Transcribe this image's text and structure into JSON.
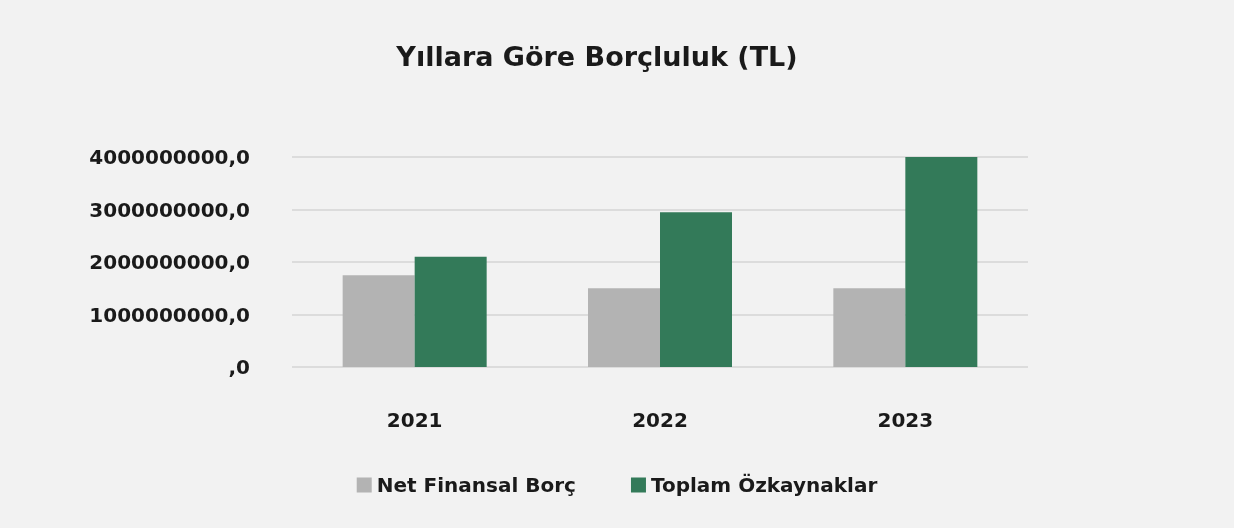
{
  "chart_data": {
    "type": "bar",
    "title": "Yıllara Göre Borçluluk (TL)",
    "categories": [
      "2021",
      "2022",
      "2023"
    ],
    "series": [
      {
        "name": "Net Finansal Borç",
        "color": "#b3b3b3",
        "values": [
          1750000000,
          1500000000,
          1500000000
        ]
      },
      {
        "name": "Toplam Özkaynaklar",
        "color": "#337a59",
        "values": [
          2100000000,
          2950000000,
          4000000000
        ]
      }
    ],
    "ylim": [
      0,
      4000000000
    ],
    "yticks": [
      {
        "value": 0,
        "label": ",0"
      },
      {
        "value": 1000000000,
        "label": "1000000000,0"
      },
      {
        "value": 2000000000,
        "label": "2000000000,0"
      },
      {
        "value": 3000000000,
        "label": "3000000000,0"
      },
      {
        "value": 4000000000,
        "label": "4000000000,0"
      }
    ],
    "grid": "y",
    "legend": "bottom"
  }
}
